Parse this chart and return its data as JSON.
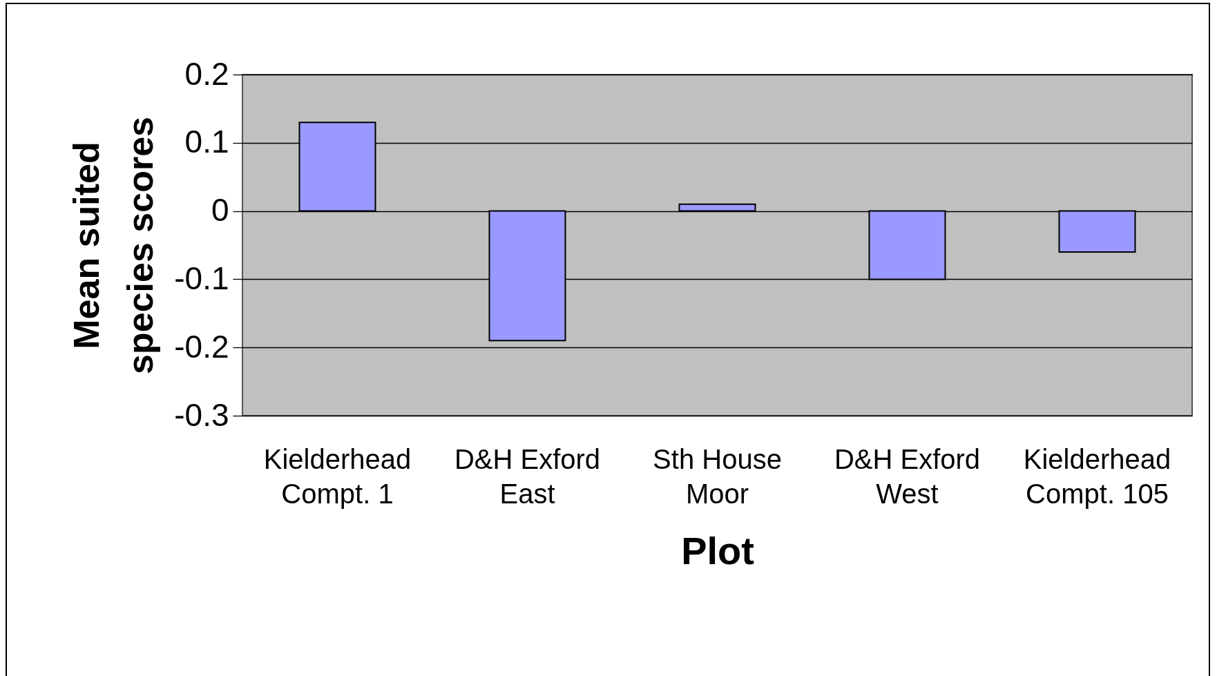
{
  "chart_data": {
    "type": "bar",
    "xlabel": "Plot",
    "ylabel": "Mean suited species scores",
    "categories": [
      "Kielderhead Compt. 1",
      "D&H Exford East",
      "Sth House Moor",
      "D&H Exford West",
      "Kielderhead Compt. 105"
    ],
    "values": [
      0.13,
      -0.19,
      0.01,
      -0.1,
      -0.06
    ],
    "color": "#9999ff",
    "ylim": [
      -0.3,
      0.2
    ],
    "yticks": [
      -0.3,
      -0.2,
      -0.1,
      0,
      0.1,
      0.2
    ],
    "grid": "y"
  }
}
